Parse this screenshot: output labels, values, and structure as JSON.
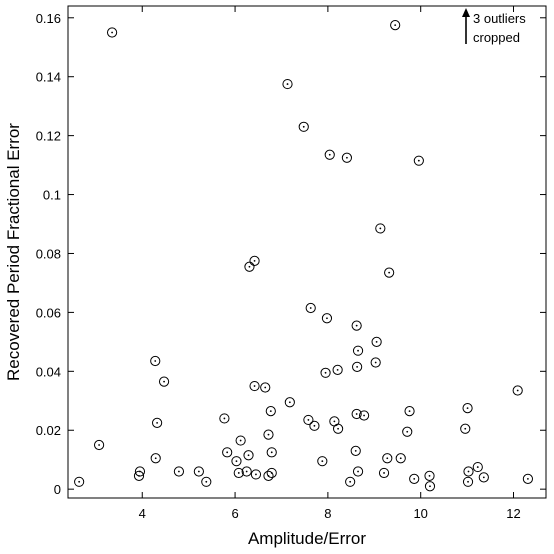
{
  "chart_data": {
    "type": "scatter",
    "xlabel": "Amplitude/Error",
    "ylabel": "Recovered Period Fractional Error",
    "xlim": [
      2.4,
      12.7
    ],
    "ylim": [
      -0.003,
      0.164
    ],
    "xticks": [
      4,
      6,
      8,
      10,
      12
    ],
    "yticks": [
      0,
      0.02,
      0.04,
      0.06,
      0.08,
      0.1,
      0.12,
      0.14,
      0.16
    ],
    "ytick_labels": [
      "0",
      "0.02",
      "0.04",
      "0.06",
      "0.08",
      "0.1",
      "0.12",
      "0.14",
      "0.16"
    ],
    "grid": false,
    "marker": "open-circle-with-dot",
    "annotation": {
      "line1": "3 outliers",
      "line2": "cropped",
      "arrow": "up"
    },
    "points": [
      [
        2.64,
        0.0025
      ],
      [
        3.07,
        0.015
      ],
      [
        3.35,
        0.155
      ],
      [
        3.93,
        0.0045
      ],
      [
        3.95,
        0.006
      ],
      [
        4.28,
        0.0435
      ],
      [
        4.29,
        0.0105
      ],
      [
        4.32,
        0.0225
      ],
      [
        4.47,
        0.0365
      ],
      [
        4.79,
        0.006
      ],
      [
        5.22,
        0.006
      ],
      [
        5.38,
        0.0025
      ],
      [
        5.77,
        0.024
      ],
      [
        5.83,
        0.0125
      ],
      [
        6.03,
        0.0095
      ],
      [
        6.08,
        0.0055
      ],
      [
        6.12,
        0.0165
      ],
      [
        6.25,
        0.006
      ],
      [
        6.29,
        0.0115
      ],
      [
        6.31,
        0.0755
      ],
      [
        6.42,
        0.0775
      ],
      [
        6.42,
        0.035
      ],
      [
        6.45,
        0.005
      ],
      [
        6.65,
        0.0345
      ],
      [
        6.72,
        0.0185
      ],
      [
        6.72,
        0.0045
      ],
      [
        6.77,
        0.0265
      ],
      [
        6.79,
        0.0055
      ],
      [
        6.79,
        0.0125
      ],
      [
        7.13,
        0.1375
      ],
      [
        7.18,
        0.0295
      ],
      [
        7.48,
        0.123
      ],
      [
        7.58,
        0.0235
      ],
      [
        7.63,
        0.0615
      ],
      [
        7.71,
        0.0215
      ],
      [
        7.88,
        0.0095
      ],
      [
        7.95,
        0.0395
      ],
      [
        7.98,
        0.058
      ],
      [
        8.04,
        0.1135
      ],
      [
        8.14,
        0.023
      ],
      [
        8.21,
        0.0405
      ],
      [
        8.22,
        0.0205
      ],
      [
        8.41,
        0.1125
      ],
      [
        8.48,
        0.0025
      ],
      [
        8.6,
        0.013
      ],
      [
        8.62,
        0.0255
      ],
      [
        8.62,
        0.0555
      ],
      [
        8.63,
        0.0415
      ],
      [
        8.65,
        0.047
      ],
      [
        8.65,
        0.006
      ],
      [
        8.78,
        0.025
      ],
      [
        9.03,
        0.043
      ],
      [
        9.05,
        0.05
      ],
      [
        9.13,
        0.0885
      ],
      [
        9.21,
        0.0055
      ],
      [
        9.28,
        0.0105
      ],
      [
        9.32,
        0.0735
      ],
      [
        9.45,
        0.1575
      ],
      [
        9.57,
        0.0105
      ],
      [
        9.71,
        0.0195
      ],
      [
        9.76,
        0.0265
      ],
      [
        9.86,
        0.0035
      ],
      [
        9.96,
        0.1115
      ],
      [
        10.19,
        0.0045
      ],
      [
        10.2,
        0.001
      ],
      [
        10.96,
        0.0205
      ],
      [
        11.01,
        0.0275
      ],
      [
        11.02,
        0.0025
      ],
      [
        11.03,
        0.006
      ],
      [
        11.23,
        0.0075
      ],
      [
        11.36,
        0.004
      ],
      [
        12.09,
        0.0335
      ],
      [
        12.31,
        0.0035
      ]
    ]
  }
}
